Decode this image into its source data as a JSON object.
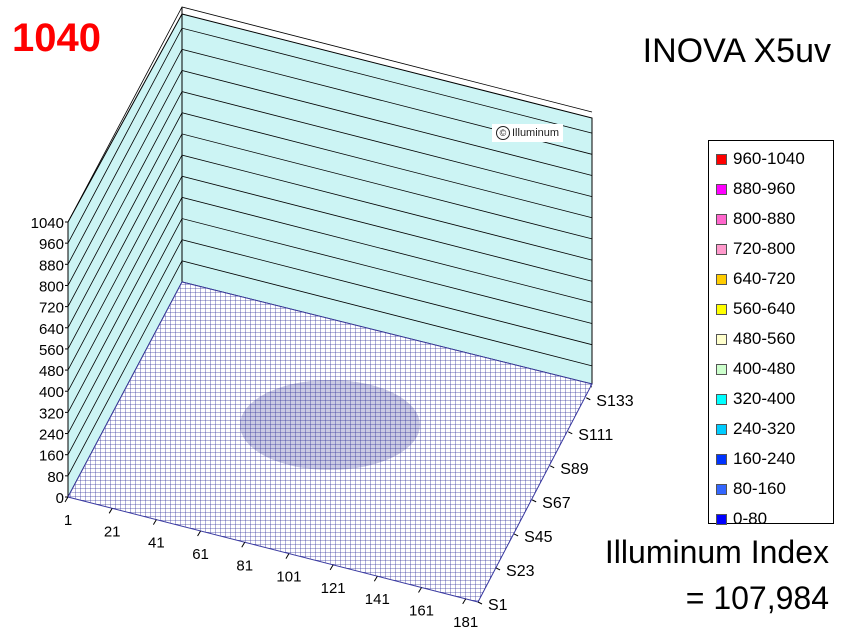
{
  "header": {
    "peak_value": "1040",
    "product_name": "INOVA X5uv",
    "watermark": "Illuminum"
  },
  "index": {
    "label": "Illuminum Index",
    "value": "= 107,984"
  },
  "colors": {
    "peak_text": "#ff0000",
    "wall_fill": "#ccf4f4",
    "floor_mesh": "#3a3aa0"
  },
  "chart_data": {
    "type": "surface3d",
    "z_ticks": [
      "0",
      "80",
      "160",
      "240",
      "320",
      "400",
      "480",
      "560",
      "640",
      "720",
      "800",
      "880",
      "960",
      "1040"
    ],
    "z_range": [
      0,
      1040
    ],
    "x_ticks": [
      "1",
      "21",
      "41",
      "61",
      "81",
      "101",
      "121",
      "141",
      "161",
      "181"
    ],
    "y_ticks": [
      "S1",
      "S23",
      "S45",
      "S67",
      "S89",
      "S111",
      "S133"
    ],
    "peak_intensity": 1040,
    "surface_description_level": "near-zero everywhere relative to 1040 scale",
    "legend": [
      {
        "label": "960-1040",
        "color": "#ff0000"
      },
      {
        "label": "880-960",
        "color": "#ff00ff"
      },
      {
        "label": "800-880",
        "color": "#ff66cc"
      },
      {
        "label": "720-800",
        "color": "#ff99cc"
      },
      {
        "label": "640-720",
        "color": "#ffcc00"
      },
      {
        "label": "560-640",
        "color": "#ffff00"
      },
      {
        "label": "480-560",
        "color": "#ffffcc"
      },
      {
        "label": "400-480",
        "color": "#ccffcc"
      },
      {
        "label": "320-400",
        "color": "#00ffff"
      },
      {
        "label": "240-320",
        "color": "#00ccff"
      },
      {
        "label": "160-240",
        "color": "#0033ff"
      },
      {
        "label": "80-160",
        "color": "#3366ff"
      },
      {
        "label": "0-80",
        "color": "#0000ff"
      }
    ]
  }
}
